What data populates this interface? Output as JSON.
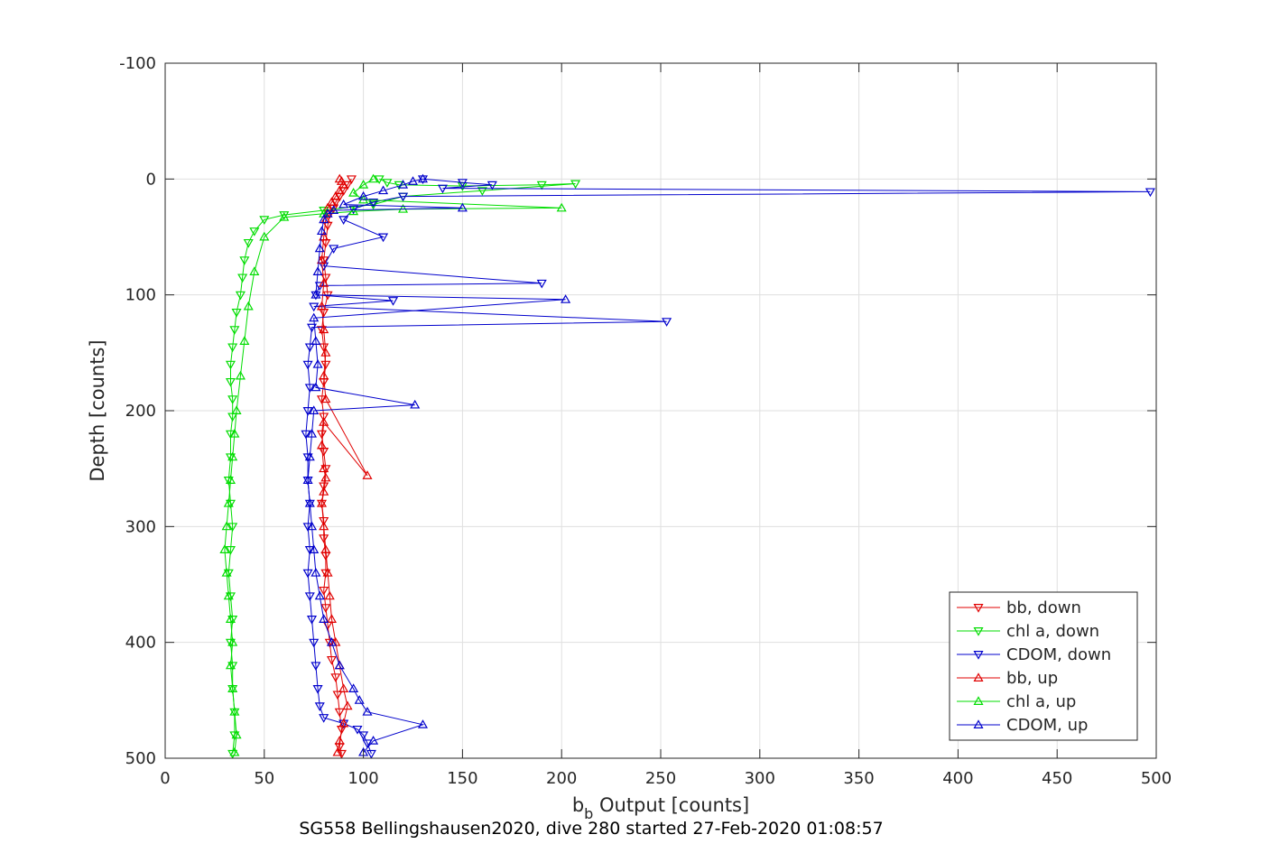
{
  "chart_data": {
    "type": "line",
    "xlabel_main": "b",
    "xlabel_sub": "b",
    "xlabel_rest": " Output [counts]",
    "ylabel": "Depth [counts]",
    "caption": "SG558 Bellingshausen2020, dive 280 started 27-Feb-2020 01:08:57",
    "xlim": [
      0,
      500
    ],
    "ylim": [
      -100,
      500
    ],
    "y_reversed": true,
    "grid": true,
    "legend_position": "bottom-right",
    "x_ticks": [
      0,
      50,
      100,
      150,
      200,
      250,
      300,
      350,
      400,
      450,
      500
    ],
    "y_ticks": [
      -100,
      0,
      100,
      200,
      300,
      400,
      500
    ],
    "x_tick_labels": [
      "0",
      "50",
      "100",
      "150",
      "200",
      "250",
      "300",
      "350",
      "400",
      "450",
      "500"
    ],
    "y_tick_labels": [
      "-100",
      "0",
      "100",
      "200",
      "300",
      "400",
      "500"
    ],
    "series": [
      {
        "name": "bb, down",
        "color": "#e00000",
        "marker": "triangle-down",
        "x": [
          94,
          92,
          90,
          88,
          86,
          85,
          83,
          82,
          81,
          80,
          81,
          82,
          80,
          79,
          80,
          81,
          80,
          79,
          80,
          79,
          80,
          81,
          80,
          79,
          80,
          80,
          81,
          81,
          80,
          81,
          82,
          83,
          84,
          86,
          87,
          88,
          89,
          88,
          89
        ],
        "y": [
          0,
          5,
          10,
          15,
          20,
          25,
          30,
          40,
          55,
          70,
          85,
          100,
          115,
          130,
          145,
          160,
          175,
          190,
          205,
          220,
          235,
          250,
          265,
          280,
          295,
          310,
          325,
          340,
          355,
          370,
          385,
          400,
          415,
          430,
          445,
          460,
          475,
          490,
          496
        ]
      },
      {
        "name": "chl a, down",
        "color": "#00dd00",
        "marker": "triangle-down",
        "x": [
          108,
          112,
          118,
          150,
          190,
          207,
          160,
          120,
          105,
          80,
          60,
          50,
          45,
          42,
          40,
          39,
          38,
          36,
          35,
          34,
          33,
          33,
          34,
          34,
          33,
          33,
          32,
          33,
          34,
          33,
          32,
          33,
          34,
          33,
          34,
          34,
          35,
          35,
          34
        ],
        "y": [
          0,
          3,
          5,
          6,
          5,
          4,
          10,
          15,
          22,
          27,
          31,
          35,
          45,
          55,
          70,
          85,
          100,
          115,
          130,
          145,
          160,
          175,
          190,
          205,
          220,
          240,
          260,
          280,
          300,
          320,
          340,
          360,
          380,
          400,
          420,
          440,
          460,
          480,
          496
        ]
      },
      {
        "name": "CDOM, down",
        "color": "#0000cc",
        "marker": "triangle-down",
        "x": [
          130,
          150,
          165,
          140,
          497,
          120,
          105,
          95,
          90,
          110,
          85,
          80,
          190,
          78,
          76,
          115,
          75,
          253,
          74,
          73,
          72,
          73,
          72,
          71,
          72,
          72,
          73,
          72,
          73,
          72,
          73,
          74,
          75,
          76,
          77,
          78,
          80,
          90,
          97,
          100,
          102,
          104
        ],
        "y": [
          0,
          3,
          5,
          8,
          11,
          15,
          20,
          26,
          35,
          50,
          60,
          75,
          90,
          92,
          100,
          105,
          110,
          123,
          128,
          145,
          160,
          180,
          200,
          220,
          240,
          260,
          280,
          300,
          320,
          340,
          360,
          380,
          400,
          420,
          440,
          455,
          465,
          470,
          475,
          480,
          487,
          496
        ]
      },
      {
        "name": "bb, up",
        "color": "#e00000",
        "marker": "triangle-up",
        "x": [
          87,
          88,
          90,
          92,
          90,
          88,
          86,
          84,
          83,
          82,
          81,
          80,
          79,
          80,
          81,
          80,
          79,
          80,
          102,
          81,
          80,
          81,
          80,
          79,
          80,
          79,
          80,
          81,
          82,
          84,
          86,
          88,
          90,
          89,
          88
        ],
        "y": [
          495,
          485,
          470,
          455,
          440,
          420,
          400,
          380,
          360,
          340,
          320,
          300,
          280,
          270,
          258,
          250,
          230,
          210,
          256,
          190,
          170,
          150,
          130,
          110,
          90,
          70,
          50,
          35,
          25,
          20,
          15,
          10,
          5,
          2,
          0
        ]
      },
      {
        "name": "chl a, up",
        "color": "#00dd00",
        "marker": "triangle-up",
        "x": [
          35,
          36,
          35,
          34,
          33,
          34,
          33,
          32,
          31,
          30,
          31,
          32,
          33,
          34,
          35,
          36,
          38,
          40,
          42,
          45,
          50,
          60,
          80,
          95,
          120,
          200,
          100,
          95,
          100,
          105
        ],
        "y": [
          495,
          480,
          460,
          440,
          420,
          400,
          380,
          360,
          340,
          320,
          300,
          280,
          260,
          240,
          220,
          200,
          170,
          140,
          110,
          80,
          50,
          33,
          30,
          28,
          26,
          25,
          18,
          12,
          5,
          0
        ]
      },
      {
        "name": "CDOM, up",
        "color": "#0000cc",
        "marker": "triangle-up",
        "x": [
          100,
          105,
          130,
          102,
          98,
          95,
          88,
          84,
          80,
          78,
          76,
          75,
          74,
          73,
          72,
          73,
          74,
          75,
          126,
          76,
          77,
          76,
          75,
          202,
          76,
          77,
          78,
          79,
          80,
          82,
          85,
          150,
          90,
          100,
          110,
          120,
          125,
          130
        ],
        "y": [
          495,
          485,
          471,
          460,
          450,
          440,
          420,
          400,
          380,
          360,
          340,
          320,
          300,
          280,
          260,
          240,
          220,
          200,
          195,
          180,
          160,
          140,
          120,
          104,
          100,
          80,
          60,
          45,
          35,
          30,
          27,
          25,
          22,
          15,
          10,
          5,
          2,
          0
        ]
      }
    ]
  }
}
